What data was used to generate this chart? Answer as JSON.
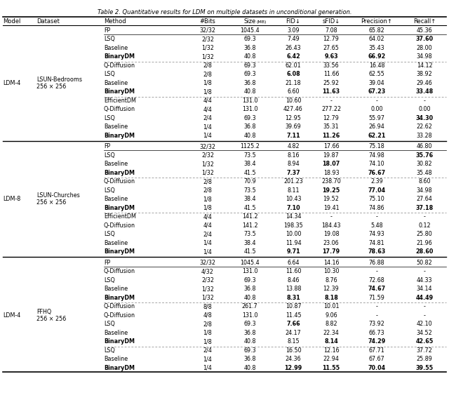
{
  "title": "Table 2. Quantitative results for LDM on multiple datasets in unconditional generation.",
  "rows": [
    {
      "model": "LDM-4",
      "dataset": "LSUN-Bedrooms\n256 × 256",
      "method": "FP",
      "bits": "32/32",
      "size": "1045.4",
      "fid": "3.09",
      "sfid": "7.08",
      "precision": "65.82",
      "recall": "45.36",
      "bold_fid": false,
      "bold_sfid": false,
      "bold_prec": false,
      "bold_rec": false,
      "dashed_above": false,
      "group_sep_above": false,
      "fp_sep_below": true
    },
    {
      "model": "",
      "dataset": "",
      "method": "LSQ",
      "bits": "2/32",
      "size": "69.3",
      "fid": "7.49",
      "sfid": "12.79",
      "precision": "64.02",
      "recall": "37.60",
      "bold_fid": false,
      "bold_sfid": false,
      "bold_prec": false,
      "bold_rec": true,
      "dashed_above": false,
      "group_sep_above": false,
      "fp_sep_below": false
    },
    {
      "model": "",
      "dataset": "",
      "method": "Baseline",
      "bits": "1/32",
      "size": "36.8",
      "fid": "26.43",
      "sfid": "27.65",
      "precision": "35.43",
      "recall": "28.00",
      "bold_fid": false,
      "bold_sfid": false,
      "bold_prec": false,
      "bold_rec": false,
      "dashed_above": false,
      "group_sep_above": false,
      "fp_sep_below": false
    },
    {
      "model": "",
      "dataset": "",
      "method": "BinaryDM",
      "bits": "1/32",
      "size": "40.8",
      "fid": "6.42",
      "sfid": "9.63",
      "precision": "66.92",
      "recall": "34.98",
      "bold_fid": true,
      "bold_sfid": true,
      "bold_prec": true,
      "bold_rec": false,
      "dashed_above": false,
      "group_sep_above": false,
      "fp_sep_below": false
    },
    {
      "model": "",
      "dataset": "",
      "method": "Q-Diffusion",
      "bits": "2/8",
      "size": "69.3",
      "fid": "62.01",
      "sfid": "33.56",
      "precision": "16.48",
      "recall": "14.12",
      "bold_fid": false,
      "bold_sfid": false,
      "bold_prec": false,
      "bold_rec": false,
      "dashed_above": true,
      "group_sep_above": false,
      "fp_sep_below": false
    },
    {
      "model": "",
      "dataset": "",
      "method": "LSQ",
      "bits": "2/8",
      "size": "69.3",
      "fid": "6.08",
      "sfid": "11.66",
      "precision": "62.55",
      "recall": "38.92",
      "bold_fid": true,
      "bold_sfid": false,
      "bold_prec": false,
      "bold_rec": false,
      "dashed_above": false,
      "group_sep_above": false,
      "fp_sep_below": false
    },
    {
      "model": "",
      "dataset": "",
      "method": "Baseline",
      "bits": "1/8",
      "size": "36.8",
      "fid": "21.18",
      "sfid": "25.92",
      "precision": "39.04",
      "recall": "29.46",
      "bold_fid": false,
      "bold_sfid": false,
      "bold_prec": false,
      "bold_rec": false,
      "dashed_above": false,
      "group_sep_above": false,
      "fp_sep_below": false
    },
    {
      "model": "",
      "dataset": "",
      "method": "BinaryDM",
      "bits": "1/8",
      "size": "40.8",
      "fid": "6.60",
      "sfid": "11.63",
      "precision": "67.23",
      "recall": "33.48",
      "bold_fid": false,
      "bold_sfid": true,
      "bold_prec": true,
      "bold_rec": true,
      "dashed_above": false,
      "group_sep_above": false,
      "fp_sep_below": false
    },
    {
      "model": "",
      "dataset": "",
      "method": "EfficientDM",
      "bits": "4/4",
      "size": "131.0",
      "fid": "10.60",
      "sfid": "-",
      "precision": "-",
      "recall": "-",
      "bold_fid": false,
      "bold_sfid": false,
      "bold_prec": false,
      "bold_rec": false,
      "dashed_above": true,
      "group_sep_above": false,
      "fp_sep_below": false
    },
    {
      "model": "",
      "dataset": "",
      "method": "Q-Diffusion",
      "bits": "4/4",
      "size": "131.0",
      "fid": "427.46",
      "sfid": "277.22",
      "precision": "0.00",
      "recall": "0.00",
      "bold_fid": false,
      "bold_sfid": false,
      "bold_prec": false,
      "bold_rec": false,
      "dashed_above": false,
      "group_sep_above": false,
      "fp_sep_below": false
    },
    {
      "model": "",
      "dataset": "",
      "method": "LSQ",
      "bits": "2/4",
      "size": "69.3",
      "fid": "12.95",
      "sfid": "12.79",
      "precision": "55.97",
      "recall": "34.30",
      "bold_fid": false,
      "bold_sfid": false,
      "bold_prec": false,
      "bold_rec": true,
      "dashed_above": false,
      "group_sep_above": false,
      "fp_sep_below": false
    },
    {
      "model": "",
      "dataset": "",
      "method": "Baseline",
      "bits": "1/4",
      "size": "36.8",
      "fid": "39.69",
      "sfid": "35.31",
      "precision": "26.94",
      "recall": "22.62",
      "bold_fid": false,
      "bold_sfid": false,
      "bold_prec": false,
      "bold_rec": false,
      "dashed_above": false,
      "group_sep_above": false,
      "fp_sep_below": false
    },
    {
      "model": "",
      "dataset": "",
      "method": "BinaryDM",
      "bits": "1/4",
      "size": "40.8",
      "fid": "7.11",
      "sfid": "11.26",
      "precision": "62.21",
      "recall": "33.28",
      "bold_fid": true,
      "bold_sfid": true,
      "bold_prec": true,
      "bold_rec": false,
      "dashed_above": false,
      "group_sep_above": false,
      "fp_sep_below": false
    },
    {
      "model": "LDM-8",
      "dataset": "LSUN-Churches\n256 × 256",
      "method": "FP",
      "bits": "32/32",
      "size": "1125.2",
      "fid": "4.82",
      "sfid": "17.66",
      "precision": "75.18",
      "recall": "46.80",
      "bold_fid": false,
      "bold_sfid": false,
      "bold_prec": false,
      "bold_rec": false,
      "dashed_above": false,
      "group_sep_above": true,
      "fp_sep_below": true
    },
    {
      "model": "",
      "dataset": "",
      "method": "LSQ",
      "bits": "2/32",
      "size": "73.5",
      "fid": "8.16",
      "sfid": "19.87",
      "precision": "74.98",
      "recall": "35.76",
      "bold_fid": false,
      "bold_sfid": false,
      "bold_prec": false,
      "bold_rec": true,
      "dashed_above": false,
      "group_sep_above": false,
      "fp_sep_below": false
    },
    {
      "model": "",
      "dataset": "",
      "method": "Baseline",
      "bits": "1/32",
      "size": "38.4",
      "fid": "8.94",
      "sfid": "18.07",
      "precision": "74.10",
      "recall": "30.82",
      "bold_fid": false,
      "bold_sfid": true,
      "bold_prec": false,
      "bold_rec": false,
      "dashed_above": false,
      "group_sep_above": false,
      "fp_sep_below": false
    },
    {
      "model": "",
      "dataset": "",
      "method": "BinaryDM",
      "bits": "1/32",
      "size": "41.5",
      "fid": "7.37",
      "sfid": "18.93",
      "precision": "76.67",
      "recall": "35.48",
      "bold_fid": true,
      "bold_sfid": false,
      "bold_prec": true,
      "bold_rec": false,
      "dashed_above": false,
      "group_sep_above": false,
      "fp_sep_below": false
    },
    {
      "model": "",
      "dataset": "",
      "method": "Q-Diffusion",
      "bits": "2/8",
      "size": "70.9",
      "fid": "201.23",
      "sfid": "238.70",
      "precision": "2.39",
      "recall": "8.60",
      "bold_fid": false,
      "bold_sfid": false,
      "bold_prec": false,
      "bold_rec": false,
      "dashed_above": true,
      "group_sep_above": false,
      "fp_sep_below": false
    },
    {
      "model": "",
      "dataset": "",
      "method": "LSQ",
      "bits": "2/8",
      "size": "73.5",
      "fid": "8.11",
      "sfid": "19.25",
      "precision": "77.04",
      "recall": "34.98",
      "bold_fid": false,
      "bold_sfid": true,
      "bold_prec": true,
      "bold_rec": false,
      "dashed_above": false,
      "group_sep_above": false,
      "fp_sep_below": false
    },
    {
      "model": "",
      "dataset": "",
      "method": "Baseline",
      "bits": "1/8",
      "size": "38.4",
      "fid": "10.43",
      "sfid": "19.52",
      "precision": "75.10",
      "recall": "27.64",
      "bold_fid": false,
      "bold_sfid": false,
      "bold_prec": false,
      "bold_rec": false,
      "dashed_above": false,
      "group_sep_above": false,
      "fp_sep_below": false
    },
    {
      "model": "",
      "dataset": "",
      "method": "BinaryDM",
      "bits": "1/8",
      "size": "41.5",
      "fid": "7.10",
      "sfid": "19.41",
      "precision": "74.86",
      "recall": "37.18",
      "bold_fid": true,
      "bold_sfid": false,
      "bold_prec": false,
      "bold_rec": true,
      "dashed_above": false,
      "group_sep_above": false,
      "fp_sep_below": false
    },
    {
      "model": "",
      "dataset": "",
      "method": "EfficientDM",
      "bits": "4/4",
      "size": "141.2",
      "fid": "14.34",
      "sfid": "-",
      "precision": "-",
      "recall": "-",
      "bold_fid": false,
      "bold_sfid": false,
      "bold_prec": false,
      "bold_rec": false,
      "dashed_above": true,
      "group_sep_above": false,
      "fp_sep_below": false
    },
    {
      "model": "",
      "dataset": "",
      "method": "Q-Diffusion",
      "bits": "4/4",
      "size": "141.2",
      "fid": "198.35",
      "sfid": "184.43",
      "precision": "5.48",
      "recall": "0.12",
      "bold_fid": false,
      "bold_sfid": false,
      "bold_prec": false,
      "bold_rec": false,
      "dashed_above": false,
      "group_sep_above": false,
      "fp_sep_below": false
    },
    {
      "model": "",
      "dataset": "",
      "method": "LSQ",
      "bits": "2/4",
      "size": "73.5",
      "fid": "10.00",
      "sfid": "19.08",
      "precision": "74.93",
      "recall": "25.80",
      "bold_fid": false,
      "bold_sfid": false,
      "bold_prec": false,
      "bold_rec": false,
      "dashed_above": false,
      "group_sep_above": false,
      "fp_sep_below": false
    },
    {
      "model": "",
      "dataset": "",
      "method": "Baseline",
      "bits": "1/4",
      "size": "38.4",
      "fid": "11.94",
      "sfid": "23.06",
      "precision": "74.81",
      "recall": "21.96",
      "bold_fid": false,
      "bold_sfid": false,
      "bold_prec": false,
      "bold_rec": false,
      "dashed_above": false,
      "group_sep_above": false,
      "fp_sep_below": false
    },
    {
      "model": "",
      "dataset": "",
      "method": "BinaryDM",
      "bits": "1/4",
      "size": "41.5",
      "fid": "9.71",
      "sfid": "17.79",
      "precision": "78.63",
      "recall": "28.60",
      "bold_fid": true,
      "bold_sfid": true,
      "bold_prec": true,
      "bold_rec": true,
      "dashed_above": false,
      "group_sep_above": false,
      "fp_sep_below": false
    },
    {
      "model": "LDM-4",
      "dataset": "FFHQ\n256 × 256",
      "method": "FP",
      "bits": "32/32",
      "size": "1045.4",
      "fid": "6.64",
      "sfid": "14.16",
      "precision": "76.88",
      "recall": "50.82",
      "bold_fid": false,
      "bold_sfid": false,
      "bold_prec": false,
      "bold_rec": false,
      "dashed_above": false,
      "group_sep_above": true,
      "fp_sep_below": true
    },
    {
      "model": "",
      "dataset": "",
      "method": "Q-Diffusion",
      "bits": "4/32",
      "size": "131.0",
      "fid": "11.60",
      "sfid": "10.30",
      "precision": "-",
      "recall": "-",
      "bold_fid": false,
      "bold_sfid": false,
      "bold_prec": false,
      "bold_rec": false,
      "dashed_above": false,
      "group_sep_above": false,
      "fp_sep_below": false
    },
    {
      "model": "",
      "dataset": "",
      "method": "LSQ",
      "bits": "2/32",
      "size": "69.3",
      "fid": "8.46",
      "sfid": "8.76",
      "precision": "72.68",
      "recall": "44.33",
      "bold_fid": false,
      "bold_sfid": false,
      "bold_prec": false,
      "bold_rec": false,
      "dashed_above": false,
      "group_sep_above": false,
      "fp_sep_below": false
    },
    {
      "model": "",
      "dataset": "",
      "method": "Baseline",
      "bits": "1/32",
      "size": "36.8",
      "fid": "13.88",
      "sfid": "12.39",
      "precision": "74.67",
      "recall": "34.14",
      "bold_fid": false,
      "bold_sfid": false,
      "bold_prec": true,
      "bold_rec": false,
      "dashed_above": false,
      "group_sep_above": false,
      "fp_sep_below": false
    },
    {
      "model": "",
      "dataset": "",
      "method": "BinaryDM",
      "bits": "1/32",
      "size": "40.8",
      "fid": "8.31",
      "sfid": "8.18",
      "precision": "71.59",
      "recall": "44.49",
      "bold_fid": true,
      "bold_sfid": true,
      "bold_prec": false,
      "bold_rec": true,
      "dashed_above": false,
      "group_sep_above": false,
      "fp_sep_below": false
    },
    {
      "model": "",
      "dataset": "",
      "method": "Q-Diffusion",
      "bits": "8/8",
      "size": "261.7",
      "fid": "10.87",
      "sfid": "10.01",
      "precision": "-",
      "recall": "-",
      "bold_fid": false,
      "bold_sfid": false,
      "bold_prec": false,
      "bold_rec": false,
      "dashed_above": true,
      "group_sep_above": false,
      "fp_sep_below": false
    },
    {
      "model": "",
      "dataset": "",
      "method": "Q-Diffusion",
      "bits": "4/8",
      "size": "131.0",
      "fid": "11.45",
      "sfid": "9.06",
      "precision": "-",
      "recall": "-",
      "bold_fid": false,
      "bold_sfid": false,
      "bold_prec": false,
      "bold_rec": false,
      "dashed_above": false,
      "group_sep_above": false,
      "fp_sep_below": false
    },
    {
      "model": "",
      "dataset": "",
      "method": "LSQ",
      "bits": "2/8",
      "size": "69.3",
      "fid": "7.66",
      "sfid": "8.82",
      "precision": "73.92",
      "recall": "42.10",
      "bold_fid": true,
      "bold_sfid": false,
      "bold_prec": false,
      "bold_rec": false,
      "dashed_above": false,
      "group_sep_above": false,
      "fp_sep_below": false
    },
    {
      "model": "",
      "dataset": "",
      "method": "Baseline",
      "bits": "1/8",
      "size": "36.8",
      "fid": "24.17",
      "sfid": "22.34",
      "precision": "66.73",
      "recall": "34.52",
      "bold_fid": false,
      "bold_sfid": false,
      "bold_prec": false,
      "bold_rec": false,
      "dashed_above": false,
      "group_sep_above": false,
      "fp_sep_below": false
    },
    {
      "model": "",
      "dataset": "",
      "method": "BinaryDM",
      "bits": "1/8",
      "size": "40.8",
      "fid": "8.15",
      "sfid": "8.14",
      "precision": "74.29",
      "recall": "42.65",
      "bold_fid": false,
      "bold_sfid": true,
      "bold_prec": true,
      "bold_rec": true,
      "dashed_above": false,
      "group_sep_above": false,
      "fp_sep_below": false
    },
    {
      "model": "",
      "dataset": "",
      "method": "LSQ",
      "bits": "2/4",
      "size": "69.3",
      "fid": "16.50",
      "sfid": "12.16",
      "precision": "67.71",
      "recall": "37.72",
      "bold_fid": false,
      "bold_sfid": false,
      "bold_prec": false,
      "bold_rec": false,
      "dashed_above": true,
      "group_sep_above": false,
      "fp_sep_below": false
    },
    {
      "model": "",
      "dataset": "",
      "method": "Baseline",
      "bits": "1/4",
      "size": "36.8",
      "fid": "24.36",
      "sfid": "22.94",
      "precision": "67.67",
      "recall": "25.89",
      "bold_fid": false,
      "bold_sfid": false,
      "bold_prec": false,
      "bold_rec": false,
      "dashed_above": false,
      "group_sep_above": false,
      "fp_sep_below": false
    },
    {
      "model": "",
      "dataset": "",
      "method": "BinaryDM",
      "bits": "1/4",
      "size": "40.8",
      "fid": "12.99",
      "sfid": "11.55",
      "precision": "70.04",
      "recall": "39.55",
      "bold_fid": true,
      "bold_sfid": true,
      "bold_prec": true,
      "bold_rec": true,
      "dashed_above": false,
      "group_sep_above": false,
      "fp_sep_below": false
    }
  ]
}
